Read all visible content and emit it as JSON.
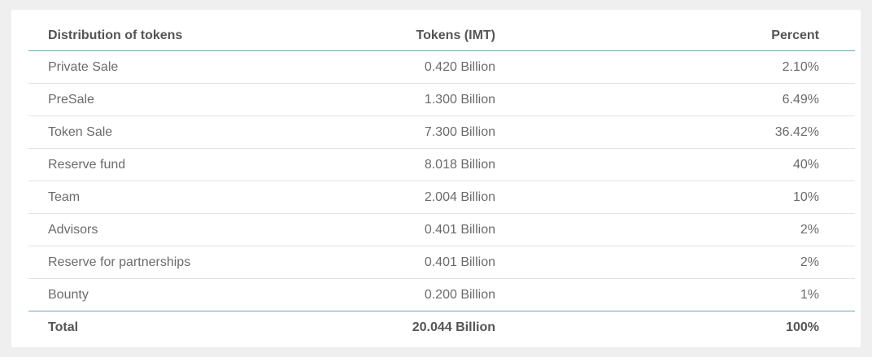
{
  "chart_data": {
    "type": "table",
    "columns": [
      "Distribution of tokens",
      "Tokens (IMT)",
      "Percent"
    ],
    "rows": [
      {
        "name": "Private Sale",
        "tokens": "0.420 Billion",
        "percent": "2.10%"
      },
      {
        "name": "PreSale",
        "tokens": "1.300 Billion",
        "percent": "6.49%"
      },
      {
        "name": "Token Sale",
        "tokens": "7.300 Billion",
        "percent": "36.42%"
      },
      {
        "name": "Reserve fund",
        "tokens": "8.018 Billion",
        "percent": "40%"
      },
      {
        "name": "Team",
        "tokens": "2.004 Billion",
        "percent": "10%"
      },
      {
        "name": "Advisors",
        "tokens": "0.401 Billion",
        "percent": "2%"
      },
      {
        "name": "Reserve for partnerships",
        "tokens": "0.401 Billion",
        "percent": "2%"
      },
      {
        "name": "Bounty",
        "tokens": "0.200 Billion",
        "percent": "1%"
      }
    ],
    "total": {
      "name": "Total",
      "tokens": "20.044 Billion",
      "percent": "100%"
    }
  }
}
